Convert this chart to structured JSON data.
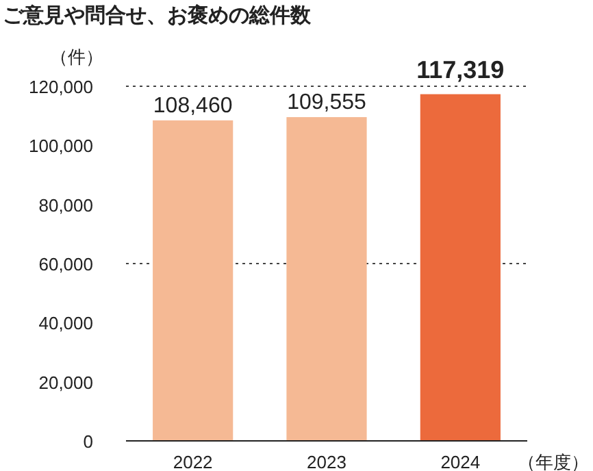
{
  "chart_data": {
    "type": "bar",
    "title": "ご意見や問合せ、お褒めの総件数",
    "ylabel": "（件）",
    "xlabel": "（年度）",
    "categories": [
      "2022",
      "2023",
      "2024"
    ],
    "values": [
      108460,
      109555,
      117319
    ],
    "colors": [
      "#f5b994",
      "#f5b994",
      "#ec6a3c"
    ],
    "value_labels": [
      "108,460",
      "109,555",
      "117,319"
    ],
    "ylim": [
      0,
      120000
    ],
    "yticks": [
      {
        "value": 0,
        "label": "0"
      },
      {
        "value": 20000,
        "label": "20,000"
      },
      {
        "value": 40000,
        "label": "40,000"
      },
      {
        "value": 60000,
        "label": "60,000"
      },
      {
        "value": 80000,
        "label": "80,000"
      },
      {
        "value": 100000,
        "label": "100,000"
      },
      {
        "value": 120000,
        "label": "120,000"
      }
    ],
    "ref_lines": [
      {
        "axis": "y",
        "value": 60000,
        "line_style": "dotted",
        "color": "#444444"
      }
    ]
  }
}
